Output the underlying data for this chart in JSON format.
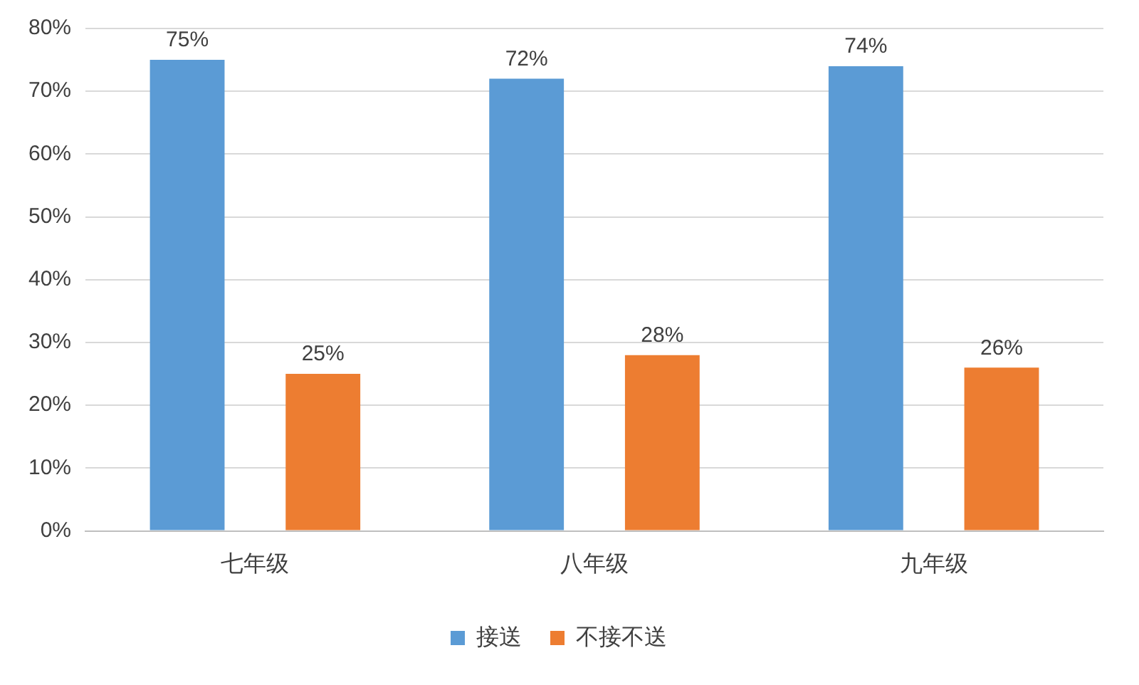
{
  "chart_data": {
    "type": "bar",
    "categories": [
      "七年级",
      "八年级",
      "九年级"
    ],
    "series": [
      {
        "name": "接送",
        "color": "#5b9bd5",
        "values": [
          75,
          72,
          74
        ],
        "value_labels": [
          "75%",
          "72%",
          "74%"
        ]
      },
      {
        "name": "不接不送",
        "color": "#ed7d31",
        "values": [
          25,
          28,
          26
        ],
        "value_labels": [
          "25%",
          "28%",
          "26%"
        ]
      }
    ],
    "ylim": [
      0,
      80
    ],
    "yticks": [
      {
        "value": 0,
        "label": "0%"
      },
      {
        "value": 10,
        "label": "10%"
      },
      {
        "value": 20,
        "label": "20%"
      },
      {
        "value": 30,
        "label": "30%"
      },
      {
        "value": 40,
        "label": "40%"
      },
      {
        "value": 50,
        "label": "50%"
      },
      {
        "value": 60,
        "label": "60%"
      },
      {
        "value": 70,
        "label": "70%"
      },
      {
        "value": 80,
        "label": "80%"
      }
    ],
    "grid": "y",
    "legend": "bottom"
  }
}
